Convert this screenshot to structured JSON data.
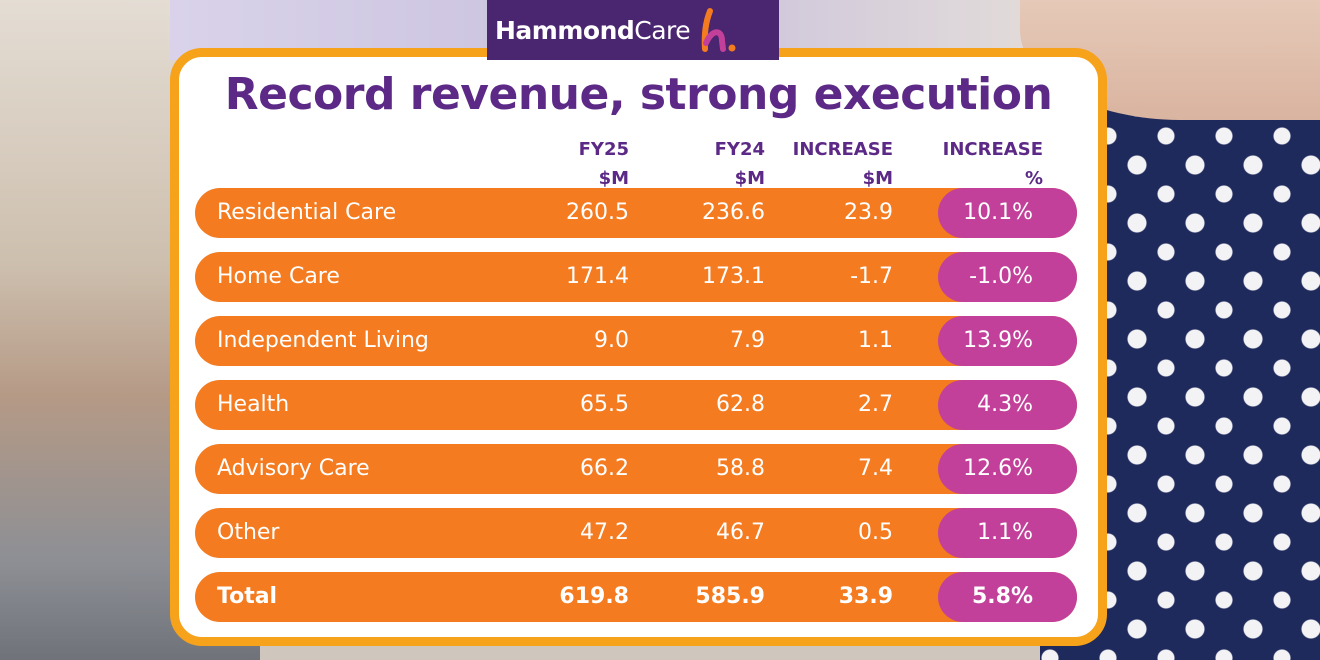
{
  "logo": {
    "text_bold": "Hammond",
    "text_light": "Care",
    "mark_colors": [
      "#f47b20",
      "#c2409a",
      "#7a3fa0"
    ]
  },
  "colors": {
    "title": "#5c2a86",
    "row": "#f47b20",
    "pill": "#c2409a",
    "border": "#f7a21b"
  },
  "chart_data": {
    "type": "table",
    "title": "Record revenue, strong execution",
    "columns": [
      {
        "line1": "FY25",
        "line2": "$M"
      },
      {
        "line1": "FY24",
        "line2": "$M"
      },
      {
        "line1": "INCREASE",
        "line2": "$M"
      },
      {
        "line1": "INCREASE",
        "line2": "%"
      }
    ],
    "rows": [
      {
        "label": "Residential Care",
        "fy25": "260.5",
        "fy24": "236.6",
        "inc": "23.9",
        "pct": "10.1%"
      },
      {
        "label": "Home Care",
        "fy25": "171.4",
        "fy24": "173.1",
        "inc": "-1.7",
        "pct": "-1.0%"
      },
      {
        "label": "Independent Living",
        "fy25": "9.0",
        "fy24": "7.9",
        "inc": "1.1",
        "pct": "13.9%"
      },
      {
        "label": "Health",
        "fy25": "65.5",
        "fy24": "62.8",
        "inc": "2.7",
        "pct": "4.3%"
      },
      {
        "label": "Advisory Care",
        "fy25": "66.2",
        "fy24": "58.8",
        "inc": "7.4",
        "pct": "12.6%"
      },
      {
        "label": "Other",
        "fy25": "47.2",
        "fy24": "46.7",
        "inc": "0.5",
        "pct": "1.1%"
      },
      {
        "label": "Total",
        "fy25": "619.8",
        "fy24": "585.9",
        "inc": "33.9",
        "pct": "5.8%"
      }
    ]
  }
}
